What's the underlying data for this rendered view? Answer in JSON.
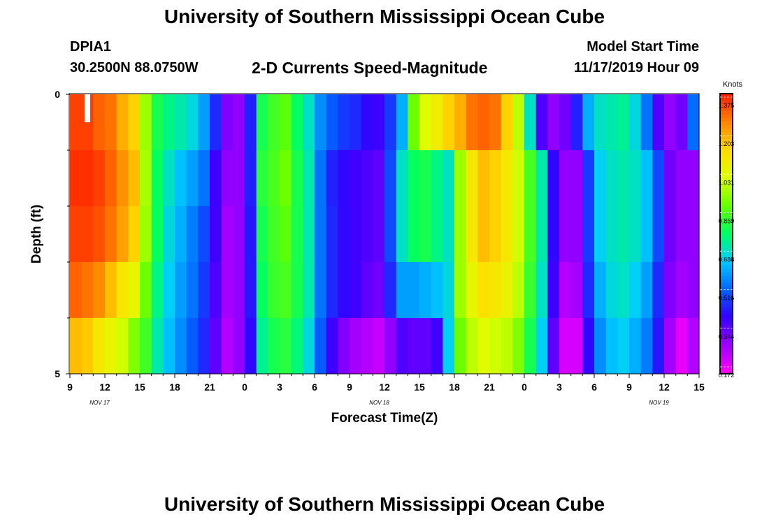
{
  "header": {
    "title": "University of Southern Mississippi Ocean Cube",
    "station_id": "DPIA1",
    "station_coords": "30.2500N 88.0750W",
    "chart_title": "2-D Currents Speed-Magnitude",
    "model_start_label": "Model Start Time",
    "model_start_value": "11/17/2019 Hour 09"
  },
  "footer": {
    "title": "University of Southern Mississippi Ocean Cube"
  },
  "chart_data": {
    "type": "heatmap",
    "title": "2-D Currents Speed-Magnitude",
    "xlabel": "Forecast Time(Z)",
    "ylabel": "Depth (ft)",
    "x_tick_labels": [
      "9",
      "12",
      "15",
      "18",
      "21",
      "0",
      "3",
      "6",
      "9",
      "12",
      "15",
      "18",
      "21",
      "0",
      "3",
      "6",
      "9",
      "12",
      "15"
    ],
    "date_labels": [
      "NOV 17",
      "NOV 18",
      "NOV 19"
    ],
    "y_tick_labels": [
      "0",
      "5"
    ],
    "ylim": [
      0,
      5
    ],
    "colorbar": {
      "label": "Knots",
      "ticks": [
        "1.375",
        "1.203",
        "1.031",
        "0.859",
        "0.688",
        "0.516",
        "0.344",
        "0.172"
      ],
      "range": [
        0.172,
        1.375
      ]
    },
    "colors": [
      "#ff00ff",
      "#9900ff",
      "#3300ff",
      "#0066ff",
      "#00ccff",
      "#00ff66",
      "#66ff00",
      "#ddff00",
      "#ffdd00",
      "#ff8800",
      "#ff2200"
    ],
    "time_columns": 54,
    "depth_layers": 5,
    "speed_by_depth_layer": [
      [
        1.34,
        1.34,
        1.3,
        1.28,
        1.2,
        1.15,
        0.95,
        0.8,
        0.75,
        0.72,
        0.68,
        0.6,
        0.46,
        0.32,
        0.3,
        0.45,
        0.8,
        0.85,
        0.88,
        0.78,
        0.7,
        0.58,
        0.52,
        0.48,
        0.46,
        0.42,
        0.4,
        0.48,
        0.62,
        0.9,
        1.02,
        1.08,
        1.15,
        1.2,
        1.28,
        1.3,
        1.28,
        1.15,
        0.98,
        0.7,
        0.38,
        0.3,
        0.34,
        0.45,
        0.62,
        0.7,
        0.72,
        0.74,
        0.68,
        0.55,
        0.38,
        0.3,
        0.34,
        0.54
      ],
      [
        1.36,
        1.36,
        1.34,
        1.3,
        1.24,
        1.18,
        0.96,
        0.78,
        0.7,
        0.64,
        0.6,
        0.55,
        0.4,
        0.3,
        0.3,
        0.45,
        0.82,
        0.86,
        0.9,
        0.8,
        0.72,
        0.55,
        0.45,
        0.42,
        0.4,
        0.38,
        0.36,
        0.5,
        0.7,
        0.78,
        0.8,
        0.75,
        0.7,
        0.95,
        1.1,
        1.18,
        1.15,
        1.1,
        1.0,
        0.86,
        0.72,
        0.42,
        0.3,
        0.3,
        0.48,
        0.66,
        0.7,
        0.72,
        0.7,
        0.64,
        0.5,
        0.34,
        0.3,
        0.3
      ],
      [
        1.34,
        1.34,
        1.32,
        1.28,
        1.22,
        1.15,
        0.95,
        0.78,
        0.68,
        0.62,
        0.56,
        0.5,
        0.4,
        0.28,
        0.3,
        0.44,
        0.8,
        0.85,
        0.88,
        0.8,
        0.72,
        0.55,
        0.46,
        0.42,
        0.4,
        0.38,
        0.36,
        0.5,
        0.7,
        0.78,
        0.8,
        0.75,
        0.7,
        0.95,
        1.1,
        1.18,
        1.15,
        1.1,
        1.0,
        0.86,
        0.72,
        0.42,
        0.3,
        0.3,
        0.48,
        0.66,
        0.7,
        0.72,
        0.7,
        0.64,
        0.5,
        0.34,
        0.3,
        0.3
      ],
      [
        1.3,
        1.28,
        1.25,
        1.18,
        1.1,
        1.05,
        0.9,
        0.75,
        0.66,
        0.6,
        0.55,
        0.48,
        0.38,
        0.28,
        0.3,
        0.44,
        0.78,
        0.84,
        0.86,
        0.8,
        0.72,
        0.55,
        0.46,
        0.42,
        0.4,
        0.36,
        0.34,
        0.46,
        0.6,
        0.6,
        0.62,
        0.64,
        0.68,
        0.95,
        1.05,
        1.12,
        1.1,
        1.06,
        0.98,
        0.84,
        0.7,
        0.4,
        0.26,
        0.28,
        0.46,
        0.62,
        0.68,
        0.7,
        0.66,
        0.6,
        0.46,
        0.32,
        0.28,
        0.3
      ],
      [
        1.18,
        1.16,
        1.1,
        1.05,
        1.0,
        0.92,
        0.85,
        0.72,
        0.64,
        0.58,
        0.52,
        0.46,
        0.36,
        0.26,
        0.3,
        0.42,
        0.74,
        0.8,
        0.82,
        0.76,
        0.68,
        0.52,
        0.4,
        0.32,
        0.28,
        0.26,
        0.24,
        0.3,
        0.38,
        0.36,
        0.36,
        0.4,
        0.66,
        0.9,
        0.98,
        1.02,
        1.0,
        0.98,
        0.92,
        0.8,
        0.66,
        0.36,
        0.22,
        0.22,
        0.42,
        0.58,
        0.64,
        0.66,
        0.62,
        0.56,
        0.44,
        0.28,
        0.2,
        0.26
      ]
    ]
  }
}
